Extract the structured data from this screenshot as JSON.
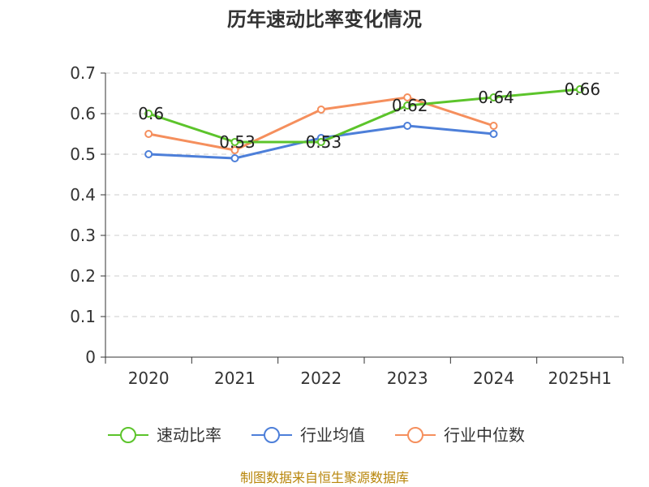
{
  "chart_data": {
    "type": "line",
    "title": "历年速动比率变化情况",
    "xlabel": "",
    "ylabel": "",
    "categories": [
      "2020",
      "2021",
      "2022",
      "2023",
      "2024",
      "2025H1"
    ],
    "ylim": [
      0,
      0.7
    ],
    "yticks": [
      "0",
      "0.1",
      "0.2",
      "0.3",
      "0.4",
      "0.5",
      "0.6",
      "0.7"
    ],
    "grid": true,
    "legend_position": "bottom",
    "series": [
      {
        "name": "速动比率",
        "color": "#5cc42b",
        "values": [
          0.6,
          0.53,
          0.53,
          0.62,
          0.64,
          0.66
        ],
        "labels": [
          "0.6",
          "0.53",
          "0.53",
          "0.62",
          "0.64",
          "0.66"
        ]
      },
      {
        "name": "行业均值",
        "color": "#4d7fd9",
        "values": [
          0.5,
          0.49,
          0.54,
          0.57,
          0.55,
          null
        ]
      },
      {
        "name": "行业中位数",
        "color": "#f58f5d",
        "values": [
          0.55,
          0.51,
          0.61,
          0.64,
          0.57,
          null
        ]
      }
    ]
  },
  "source": "制图数据来自恒生聚源数据库"
}
